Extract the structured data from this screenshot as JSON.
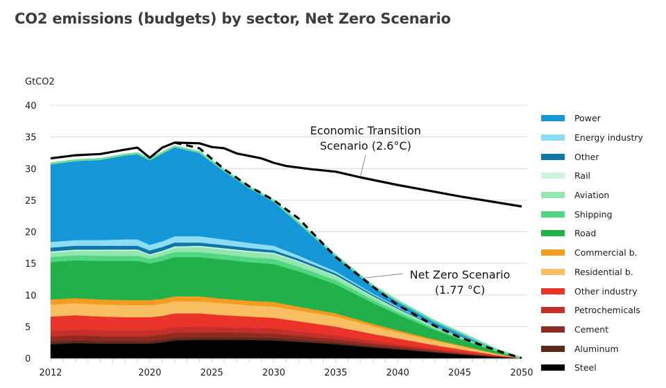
{
  "title": "CO2 emissions (budgets) by sector, Net Zero Scenario",
  "chart_data": {
    "type": "area",
    "stacked": true,
    "title": "CO2 emissions (budgets) by sector, Net Zero Scenario",
    "ylabel": "GtCO2",
    "xlabel": "",
    "ylim": [
      0,
      40
    ],
    "xlim": [
      2012,
      2050
    ],
    "yticks": [
      0,
      5,
      10,
      15,
      20,
      25,
      30,
      35,
      40
    ],
    "xticks": [
      2012,
      2020,
      2025,
      2030,
      2035,
      2040,
      2045,
      2050
    ],
    "grid": "horizontal",
    "legend_position": "right",
    "x": [
      2012,
      2014,
      2016,
      2018,
      2019,
      2020,
      2021,
      2022,
      2024,
      2026,
      2028,
      2030,
      2032,
      2035,
      2038,
      2040,
      2043,
      2045,
      2048,
      2050
    ],
    "series": [
      {
        "name": "Steel",
        "color": "#000000",
        "values": [
          2.2,
          2.4,
          2.3,
          2.3,
          2.3,
          2.3,
          2.5,
          2.8,
          2.9,
          2.9,
          2.9,
          2.8,
          2.6,
          2.2,
          1.7,
          1.4,
          0.9,
          0.6,
          0.2,
          0.0
        ]
      },
      {
        "name": "Aluminum",
        "color": "#5a2a1e",
        "values": [
          0.4,
          0.4,
          0.4,
          0.4,
          0.4,
          0.4,
          0.4,
          0.4,
          0.4,
          0.4,
          0.4,
          0.4,
          0.35,
          0.3,
          0.22,
          0.18,
          0.12,
          0.08,
          0.03,
          0.0
        ]
      },
      {
        "name": "Cement",
        "color": "#8e2a20",
        "values": [
          0.8,
          0.8,
          0.8,
          0.8,
          0.8,
          0.8,
          0.8,
          0.8,
          0.8,
          0.8,
          0.7,
          0.7,
          0.6,
          0.5,
          0.38,
          0.3,
          0.2,
          0.14,
          0.05,
          0.0
        ]
      },
      {
        "name": "Petrochemicals",
        "color": "#c1302a",
        "values": [
          0.9,
          0.9,
          0.9,
          0.9,
          0.9,
          0.9,
          0.9,
          0.9,
          0.9,
          0.8,
          0.8,
          0.8,
          0.7,
          0.6,
          0.45,
          0.35,
          0.24,
          0.16,
          0.06,
          0.0
        ]
      },
      {
        "name": "Other industry",
        "color": "#ea3329",
        "values": [
          2.3,
          2.3,
          2.2,
          2.1,
          2.1,
          2.1,
          2.1,
          2.2,
          2.1,
          1.9,
          1.8,
          1.7,
          1.6,
          1.4,
          1.1,
          0.9,
          0.6,
          0.45,
          0.15,
          0.0
        ]
      },
      {
        "name": "Residential b.",
        "color": "#fbbf63",
        "values": [
          1.9,
          1.9,
          1.9,
          1.9,
          1.9,
          1.9,
          1.9,
          1.9,
          1.9,
          1.9,
          1.8,
          1.8,
          1.7,
          1.6,
          1.2,
          1.0,
          0.7,
          0.5,
          0.18,
          0.0
        ]
      },
      {
        "name": "Commercial b.",
        "color": "#f39c1f",
        "values": [
          0.8,
          0.8,
          0.8,
          0.8,
          0.8,
          0.8,
          0.8,
          0.8,
          0.8,
          0.7,
          0.7,
          0.7,
          0.6,
          0.5,
          0.38,
          0.3,
          0.2,
          0.14,
          0.05,
          0.0
        ]
      },
      {
        "name": "Road",
        "color": "#22b04b",
        "values": [
          5.9,
          6.0,
          6.1,
          6.2,
          6.2,
          5.8,
          6.0,
          6.2,
          6.2,
          6.2,
          6.1,
          6.0,
          5.6,
          4.6,
          3.3,
          2.5,
          1.5,
          0.95,
          0.35,
          0.0
        ]
      },
      {
        "name": "Shipping",
        "color": "#52d681",
        "values": [
          0.8,
          0.8,
          0.8,
          0.8,
          0.8,
          0.75,
          0.8,
          0.8,
          0.8,
          0.8,
          0.8,
          0.8,
          0.75,
          0.65,
          0.5,
          0.4,
          0.25,
          0.18,
          0.06,
          0.0
        ]
      },
      {
        "name": "Aviation",
        "color": "#94e6b0",
        "values": [
          0.7,
          0.7,
          0.8,
          0.8,
          0.8,
          0.5,
          0.6,
          0.7,
          0.8,
          0.8,
          0.8,
          0.8,
          0.75,
          0.65,
          0.5,
          0.4,
          0.25,
          0.18,
          0.06,
          0.0
        ]
      },
      {
        "name": "Rail",
        "color": "#cdf4dc",
        "values": [
          0.2,
          0.2,
          0.2,
          0.2,
          0.2,
          0.2,
          0.2,
          0.2,
          0.2,
          0.2,
          0.2,
          0.2,
          0.15,
          0.12,
          0.1,
          0.08,
          0.05,
          0.03,
          0.01,
          0.0
        ]
      },
      {
        "name": "Other",
        "color": "#0f76a6",
        "values": [
          0.6,
          0.6,
          0.6,
          0.6,
          0.6,
          0.6,
          0.6,
          0.6,
          0.5,
          0.5,
          0.45,
          0.4,
          0.35,
          0.3,
          0.22,
          0.18,
          0.12,
          0.08,
          0.03,
          0.0
        ]
      },
      {
        "name": "Energy industry",
        "color": "#8ddcf6",
        "values": [
          0.9,
          0.9,
          0.9,
          1.0,
          1.0,
          0.9,
          0.9,
          1.0,
          1.0,
          0.9,
          0.8,
          0.7,
          0.5,
          0.3,
          0.2,
          0.15,
          0.1,
          0.06,
          0.02,
          0.0
        ]
      },
      {
        "name": "Power",
        "color": "#1596d6",
        "values": [
          12.4,
          12.6,
          12.8,
          13.4,
          13.6,
          13.5,
          14.0,
          14.2,
          13.3,
          10.9,
          8.8,
          7.1,
          5.2,
          2.5,
          1.2,
          0.9,
          0.6,
          0.5,
          0.1,
          0.0
        ]
      }
    ],
    "lines": [
      {
        "name": "Economic Transition Scenario (2.6°C)",
        "style": "solid",
        "color": "#000000",
        "x": [
          2012,
          2014,
          2016,
          2018,
          2019,
          2020,
          2021,
          2022,
          2024,
          2025,
          2026,
          2027,
          2029,
          2030,
          2031,
          2033,
          2035,
          2037,
          2040,
          2045,
          2050
        ],
        "values": [
          31.6,
          32.1,
          32.3,
          33.0,
          33.3,
          31.7,
          33.3,
          34.1,
          34.0,
          33.4,
          33.2,
          32.4,
          31.6,
          30.9,
          30.4,
          29.9,
          29.5,
          28.6,
          27.4,
          25.6,
          24.0
        ]
      },
      {
        "name": "Net Zero Scenario (1.77 °C)",
        "style": "dashed",
        "color": "#000000",
        "x": [
          2022,
          2024,
          2026,
          2028,
          2030,
          2032,
          2035,
          2038,
          2040,
          2043,
          2045,
          2048,
          2050
        ],
        "values": [
          34.1,
          33.2,
          29.9,
          27.2,
          25.0,
          22.1,
          16.0,
          11.3,
          8.4,
          5.1,
          3.3,
          1.2,
          0.0
        ]
      }
    ],
    "annotations": [
      {
        "text_line1": "Economic Transition",
        "text_line2": "Scenario (2.6°C)",
        "target_year": 2037,
        "target_value": 28.6
      },
      {
        "text_line1": "Net Zero Scenario",
        "text_line2": "(1.77 °C)",
        "target_year": 2037,
        "target_value": 12.8
      }
    ]
  }
}
